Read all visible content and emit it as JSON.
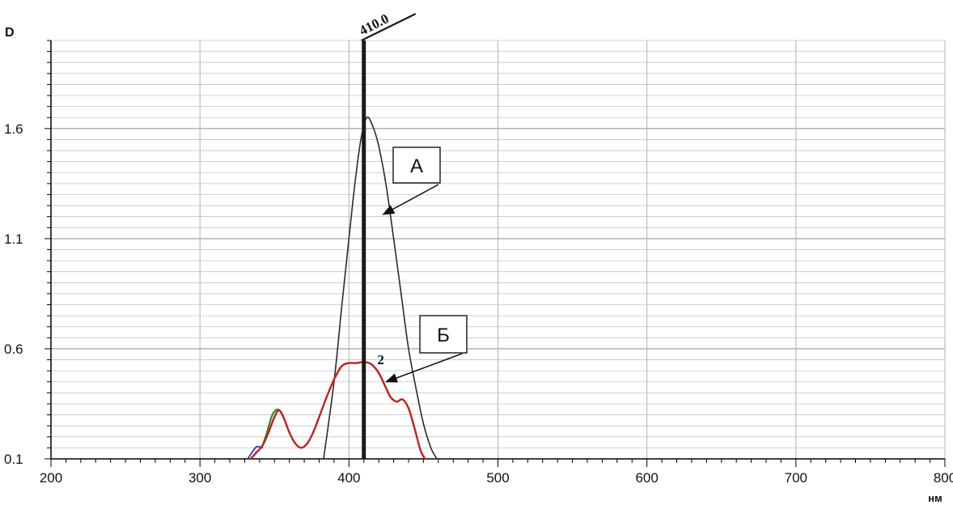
{
  "chart_data": {
    "type": "line",
    "ylabel": "D",
    "xunit": "нм",
    "xlim": [
      200,
      800
    ],
    "ylim": [
      0.1,
      2.0
    ],
    "x_ticks": [
      "200",
      "300",
      "400",
      "500",
      "600",
      "700",
      "800"
    ],
    "y_ticks": [
      "0.1",
      "0.6",
      "1.1",
      "1.6"
    ],
    "grid": true,
    "marker": {
      "x": 410,
      "label": "410.0"
    },
    "annotations": [
      {
        "label": "А",
        "target": {
          "x": 423,
          "y": 1.21
        }
      },
      {
        "label": "Б",
        "target": {
          "x": 425,
          "y": 0.45
        }
      }
    ],
    "curve_label": {
      "text": "2",
      "x": 419,
      "y": 0.53
    },
    "series": [
      {
        "color": "#2b2b2b",
        "x": [
          383,
          390,
          395,
          400,
          404,
          408,
          412,
          416,
          420,
          425,
          430,
          435,
          440,
          445,
          450,
          455,
          459
        ],
        "y": [
          0.1,
          0.45,
          0.78,
          1.1,
          1.35,
          1.55,
          1.65,
          1.61,
          1.52,
          1.34,
          1.1,
          0.85,
          0.6,
          0.42,
          0.26,
          0.15,
          0.1
        ]
      },
      {
        "color": "#2020c8",
        "x": [
          332,
          334,
          336,
          338,
          340,
          342
        ],
        "y": [
          0.1,
          0.12,
          0.14,
          0.155,
          0.155,
          0.15
        ]
      },
      {
        "color": "#2e8b2e",
        "x": [
          342,
          345,
          348,
          350,
          352,
          354,
          356
        ],
        "y": [
          0.16,
          0.22,
          0.29,
          0.315,
          0.325,
          0.315,
          0.29
        ]
      },
      {
        "color": "#c0201c",
        "x": [
          334,
          338,
          342,
          346,
          350,
          353,
          356,
          360,
          364,
          368,
          372,
          376,
          380,
          385,
          390,
          395,
          400,
          405,
          410,
          415,
          420,
          425,
          428,
          432,
          436,
          440,
          444,
          448,
          451
        ],
        "y": [
          0.1,
          0.13,
          0.16,
          0.22,
          0.29,
          0.32,
          0.29,
          0.22,
          0.17,
          0.15,
          0.17,
          0.22,
          0.29,
          0.38,
          0.46,
          0.52,
          0.535,
          0.535,
          0.54,
          0.53,
          0.49,
          0.42,
          0.38,
          0.36,
          0.37,
          0.33,
          0.24,
          0.14,
          0.1
        ]
      }
    ]
  }
}
